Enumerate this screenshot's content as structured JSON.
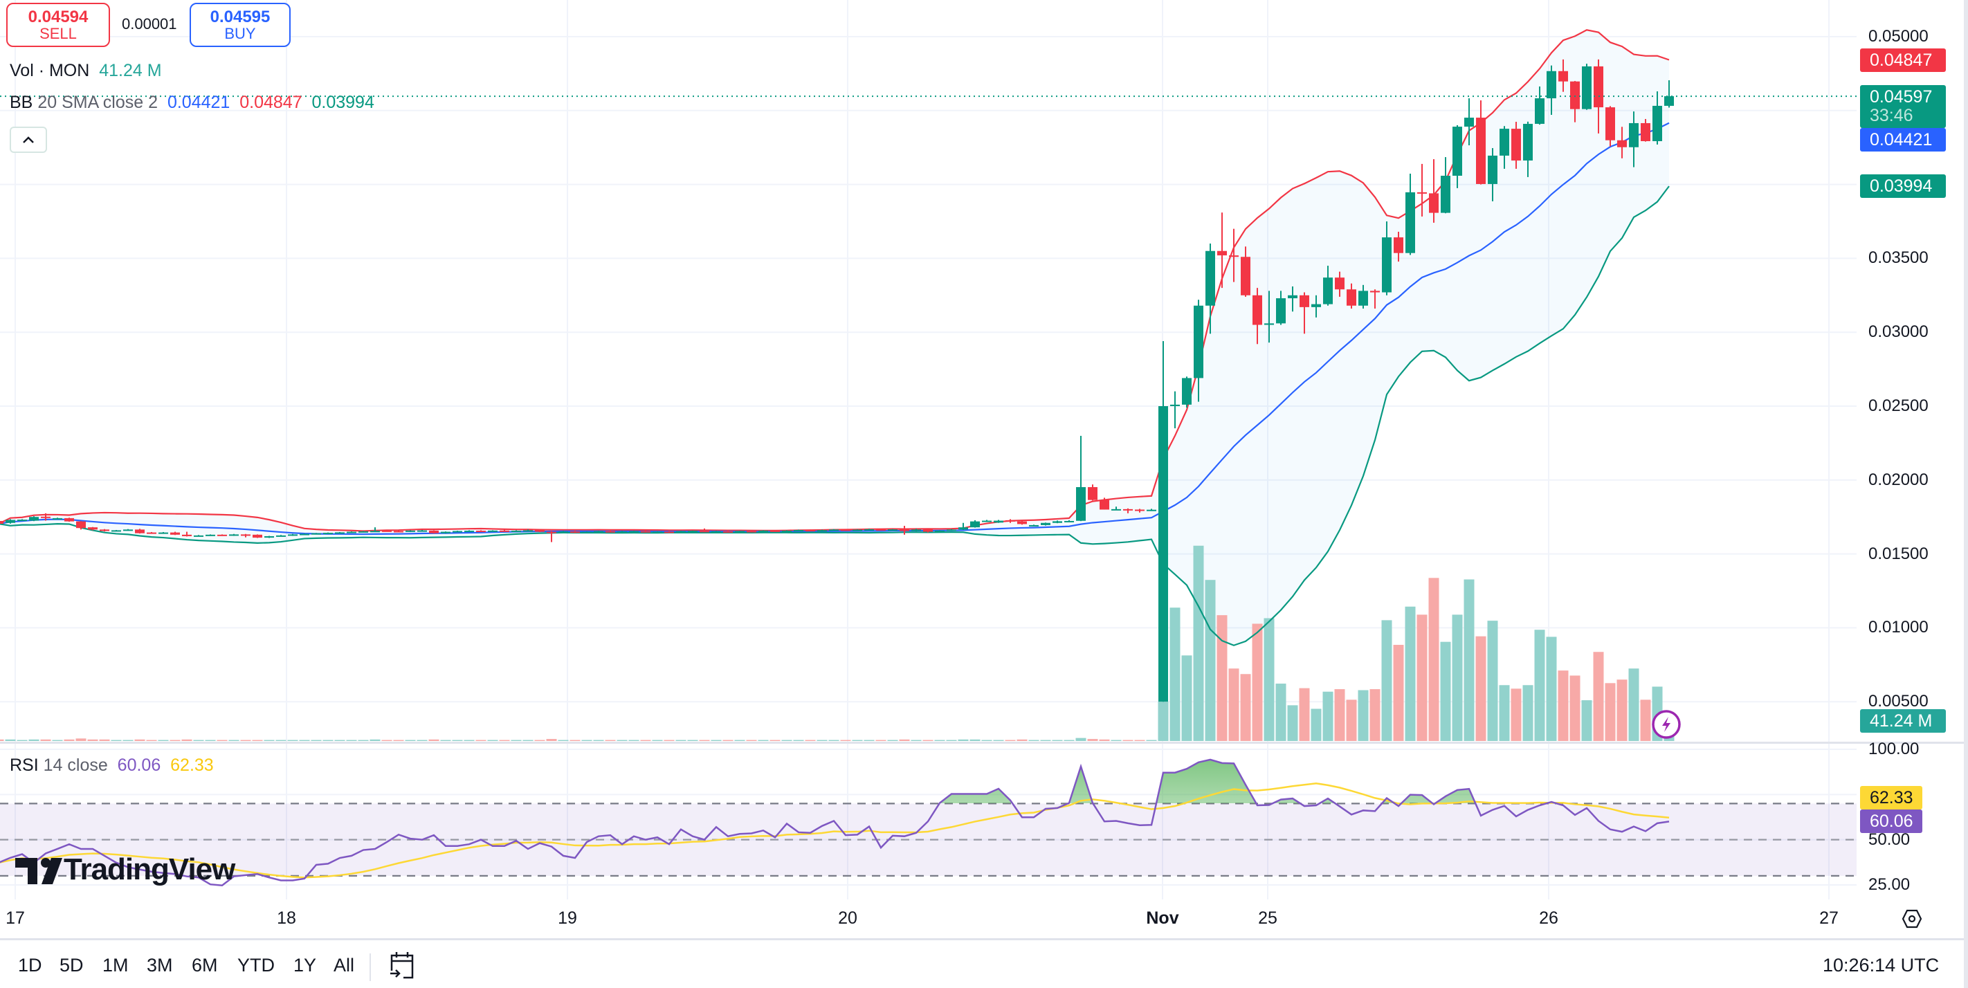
{
  "quote": {
    "sell_price": "0.04594",
    "sell_label": "SELL",
    "spread": "0.00001",
    "buy_price": "0.04595",
    "buy_label": "BUY"
  },
  "legend": {
    "vol_name": "Vol · MON",
    "vol_value": "41.24 M",
    "bb_name": "BB",
    "bb_params": "20 SMA close 2",
    "bb_basis": "0.04421",
    "bb_upper": "0.04847",
    "bb_lower": "0.03994",
    "rsi_name": "RSI",
    "rsi_params": "14 close",
    "rsi_value": "60.06",
    "rsi_ma": "62.33"
  },
  "badges": {
    "upper": "0.04847",
    "last_price": "0.04597",
    "countdown": "33:46",
    "basis": "0.04421",
    "lower": "0.03994",
    "volume": "41.24 M",
    "rsi_ma": "62.33",
    "rsi": "60.06"
  },
  "price_scale": [
    "0.05000",
    "0.03500",
    "0.03000",
    "0.02500",
    "0.02000",
    "0.01500",
    "0.01000",
    "0.00500"
  ],
  "rsi_scale": [
    "100.00",
    "50.00",
    "25.00"
  ],
  "time_axis": [
    "17",
    "18",
    "19",
    "20",
    "Nov",
    "25",
    "26",
    "27"
  ],
  "toolbar": {
    "ranges": [
      "1D",
      "5D",
      "1M",
      "3M",
      "6M",
      "YTD",
      "1Y",
      "All"
    ],
    "clock": "10:26:14 UTC"
  },
  "watermark": "TradingView",
  "colors": {
    "up": "#089981",
    "down": "#f23645",
    "bb_basis": "#2962ff",
    "bb_upper": "#f23645",
    "bb_lower": "#089981",
    "rsi": "#7e57c2",
    "rsi_ma": "#fdd835",
    "vol_up": "#92d2cc",
    "vol_down": "#f7a9a7"
  },
  "icons": {
    "collapse": "chevron-up-icon",
    "date_range": "calendar-goto-icon",
    "settings": "hexagon-settings-icon",
    "alert": "lightning-icon"
  },
  "chart_data": {
    "type": "candlestick",
    "candle_fields": [
      "open",
      "high",
      "low",
      "close",
      "volume_M"
    ],
    "y_ticks": [
      0.005,
      0.01,
      0.015,
      0.02,
      0.025,
      0.03,
      0.035,
      0.04,
      0.045,
      0.05
    ],
    "last_price": 0.04597,
    "bollinger": {
      "length": 20,
      "mult": 2
    },
    "rsi_levels": [
      70,
      50,
      30
    ],
    "rsi_ma_length": 14,
    "candles": [
      [
        0.01723,
        0.01728,
        0.017,
        0.01704,
        3
      ],
      [
        0.0171,
        0.01735,
        0.01705,
        0.0173,
        3
      ],
      [
        0.0173,
        0.01735,
        0.01725,
        0.01732,
        2
      ],
      [
        0.01725,
        0.01755,
        0.01722,
        0.0175,
        3
      ],
      [
        0.01752,
        0.01775,
        0.01725,
        0.01748,
        3
      ],
      [
        0.01738,
        0.01745,
        0.01735,
        0.01742,
        2
      ],
      [
        0.01742,
        0.01745,
        0.01718,
        0.0172,
        3
      ],
      [
        0.0172,
        0.01722,
        0.01665,
        0.01675,
        5
      ],
      [
        0.0168,
        0.01682,
        0.0166,
        0.01665,
        3
      ],
      [
        0.01665,
        0.01668,
        0.01652,
        0.01655,
        3
      ],
      [
        0.01655,
        0.01662,
        0.01652,
        0.0166,
        2
      ],
      [
        0.0166,
        0.01668,
        0.01658,
        0.01665,
        2
      ],
      [
        0.01665,
        0.0167,
        0.01638,
        0.0164,
        3
      ],
      [
        0.01645,
        0.01648,
        0.01638,
        0.0164,
        2
      ],
      [
        0.0164,
        0.01648,
        0.01636,
        0.01645,
        2
      ],
      [
        0.01645,
        0.0165,
        0.01628,
        0.0163,
        2
      ],
      [
        0.0163,
        0.0165,
        0.01618,
        0.0162,
        3
      ],
      [
        0.0162,
        0.01628,
        0.01618,
        0.01625,
        2
      ],
      [
        0.01625,
        0.01632,
        0.01622,
        0.0163,
        2
      ],
      [
        0.0163,
        0.01632,
        0.01622,
        0.01625,
        2
      ],
      [
        0.01625,
        0.01635,
        0.01622,
        0.01632,
        2
      ],
      [
        0.01632,
        0.01635,
        0.01612,
        0.0163,
        2
      ],
      [
        0.0163,
        0.01632,
        0.01608,
        0.0161,
        2
      ],
      [
        0.0161,
        0.01622,
        0.01608,
        0.0162,
        2
      ],
      [
        0.0162,
        0.01628,
        0.01618,
        0.01625,
        2
      ],
      [
        0.01625,
        0.01635,
        0.01622,
        0.01632,
        2
      ],
      [
        0.01632,
        0.01638,
        0.0163,
        0.01636,
        2
      ],
      [
        0.01636,
        0.01642,
        0.01634,
        0.0164,
        2
      ],
      [
        0.0164,
        0.01645,
        0.01636,
        0.01643,
        2
      ],
      [
        0.01643,
        0.01648,
        0.01638,
        0.01646,
        2
      ],
      [
        0.01646,
        0.01652,
        0.01644,
        0.0165,
        2
      ],
      [
        0.0165,
        0.01655,
        0.01645,
        0.01653,
        2
      ],
      [
        0.01653,
        0.0168,
        0.0165,
        0.01656,
        3
      ],
      [
        0.01658,
        0.0166,
        0.01652,
        0.01655,
        2
      ],
      [
        0.01655,
        0.01658,
        0.01648,
        0.0165,
        2
      ],
      [
        0.0165,
        0.0166,
        0.01648,
        0.01658,
        2
      ],
      [
        0.01658,
        0.01662,
        0.01655,
        0.01659,
        2
      ],
      [
        0.01658,
        0.0166,
        0.01638,
        0.0164,
        3
      ],
      [
        0.0164,
        0.01652,
        0.01638,
        0.0165,
        2
      ],
      [
        0.0165,
        0.01657,
        0.01648,
        0.01655,
        2
      ],
      [
        0.01655,
        0.0166,
        0.01652,
        0.01657,
        2
      ],
      [
        0.01657,
        0.0166,
        0.0165,
        0.01655,
        2
      ],
      [
        0.01655,
        0.0166,
        0.0165,
        0.01658,
        2
      ],
      [
        0.01658,
        0.01662,
        0.01652,
        0.01654,
        2
      ],
      [
        0.01654,
        0.0166,
        0.0165,
        0.01657,
        2
      ],
      [
        0.01657,
        0.01665,
        0.01652,
        0.0166,
        2
      ],
      [
        0.0166,
        0.01662,
        0.01648,
        0.0165,
        2
      ],
      [
        0.0165,
        0.01655,
        0.0158,
        0.01648,
        4
      ],
      [
        0.01648,
        0.01655,
        0.01645,
        0.01652,
        2
      ],
      [
        0.01652,
        0.01656,
        0.01642,
        0.01645,
        2
      ],
      [
        0.01645,
        0.01652,
        0.01643,
        0.0165,
        2
      ],
      [
        0.0165,
        0.01656,
        0.01648,
        0.01654,
        2
      ],
      [
        0.01654,
        0.01658,
        0.01646,
        0.01648,
        2
      ],
      [
        0.01648,
        0.01655,
        0.01646,
        0.01652,
        2
      ],
      [
        0.01652,
        0.01656,
        0.01648,
        0.01654,
        2
      ],
      [
        0.01654,
        0.01657,
        0.01645,
        0.01647,
        2
      ],
      [
        0.01647,
        0.01653,
        0.01645,
        0.01651,
        2
      ],
      [
        0.01651,
        0.01655,
        0.01643,
        0.01645,
        2
      ],
      [
        0.01645,
        0.01656,
        0.01643,
        0.01654,
        2
      ],
      [
        0.01654,
        0.01658,
        0.0165,
        0.01656,
        2
      ],
      [
        0.01656,
        0.01672,
        0.01648,
        0.0165,
        2
      ],
      [
        0.0165,
        0.01656,
        0.01646,
        0.01653,
        2
      ],
      [
        0.01653,
        0.01656,
        0.01645,
        0.01648,
        2
      ],
      [
        0.01648,
        0.01657,
        0.01646,
        0.01655,
        2
      ],
      [
        0.01655,
        0.01658,
        0.01648,
        0.0165,
        2
      ],
      [
        0.0165,
        0.0166,
        0.01648,
        0.01658,
        2
      ],
      [
        0.01658,
        0.01662,
        0.0165,
        0.01652,
        2
      ],
      [
        0.01652,
        0.0166,
        0.0165,
        0.01657,
        2
      ],
      [
        0.01657,
        0.01664,
        0.01655,
        0.01662,
        2
      ],
      [
        0.01662,
        0.01665,
        0.01654,
        0.01656,
        2
      ],
      [
        0.01656,
        0.01664,
        0.01654,
        0.01661,
        2
      ],
      [
        0.01661,
        0.01668,
        0.01658,
        0.01665,
        2
      ],
      [
        0.01665,
        0.01668,
        0.01656,
        0.01658,
        2
      ],
      [
        0.01658,
        0.01666,
        0.01656,
        0.01664,
        2
      ],
      [
        0.01664,
        0.0167,
        0.0166,
        0.01667,
        2
      ],
      [
        0.01667,
        0.01669,
        0.0166,
        0.01662,
        2
      ],
      [
        0.01662,
        0.01668,
        0.0166,
        0.01666,
        2
      ],
      [
        0.01668,
        0.0169,
        0.0163,
        0.01655,
        3
      ],
      [
        0.01655,
        0.0167,
        0.01652,
        0.01665,
        2
      ],
      [
        0.01665,
        0.01668,
        0.01645,
        0.0165,
        2
      ],
      [
        0.0165,
        0.0166,
        0.01648,
        0.01658,
        2
      ],
      [
        0.01658,
        0.01668,
        0.01655,
        0.01665,
        2
      ],
      [
        0.01665,
        0.0171,
        0.01662,
        0.0168,
        3
      ],
      [
        0.0168,
        0.01728,
        0.01678,
        0.0172,
        3
      ],
      [
        0.0172,
        0.0173,
        0.01718,
        0.01725,
        2
      ],
      [
        0.01712,
        0.0173,
        0.0171,
        0.01725,
        2
      ],
      [
        0.01728,
        0.01735,
        0.0171,
        0.0172,
        2
      ],
      [
        0.0172,
        0.01725,
        0.01698,
        0.01702,
        3
      ],
      [
        0.0169,
        0.01698,
        0.01688,
        0.01695,
        2
      ],
      [
        0.01695,
        0.01712,
        0.01692,
        0.0171,
        2
      ],
      [
        0.0171,
        0.01726,
        0.01708,
        0.01721,
        2
      ],
      [
        0.0172,
        0.01728,
        0.01718,
        0.01723,
        2
      ],
      [
        0.01724,
        0.02299,
        0.01722,
        0.01952,
        6
      ],
      [
        0.01952,
        0.0197,
        0.01862,
        0.01865,
        4
      ],
      [
        0.01865,
        0.0188,
        0.018,
        0.018,
        3
      ],
      [
        0.018,
        0.0182,
        0.018,
        0.01803,
        2
      ],
      [
        0.01803,
        0.01808,
        0.01775,
        0.018,
        2
      ],
      [
        0.018,
        0.01805,
        0.0178,
        0.01796,
        2
      ],
      [
        0.01796,
        0.01805,
        0.01792,
        0.01799,
        2
      ],
      [
        0.005,
        0.0294,
        0.005,
        0.025,
        78
      ],
      [
        0.025,
        0.026,
        0.0235,
        0.0251,
        265
      ],
      [
        0.0251,
        0.027,
        0.0249,
        0.0269,
        170
      ],
      [
        0.0269,
        0.0322,
        0.0253,
        0.0318,
        388
      ],
      [
        0.0318,
        0.036,
        0.0299,
        0.0355,
        320
      ],
      [
        0.0355,
        0.0381,
        0.033,
        0.0352,
        250
      ],
      [
        0.0352,
        0.037,
        0.0334,
        0.0351,
        144
      ],
      [
        0.0351,
        0.0358,
        0.0324,
        0.0325,
        133
      ],
      [
        0.0325,
        0.033,
        0.0292,
        0.0305,
        233
      ],
      [
        0.0305,
        0.0328,
        0.0293,
        0.0306,
        244
      ],
      [
        0.0306,
        0.0328,
        0.0305,
        0.0323,
        114
      ],
      [
        0.0323,
        0.0331,
        0.0314,
        0.0325,
        71
      ],
      [
        0.0325,
        0.0327,
        0.0299,
        0.0317,
        105
      ],
      [
        0.0317,
        0.0325,
        0.031,
        0.0319,
        64
      ],
      [
        0.0319,
        0.0345,
        0.0318,
        0.0337,
        98
      ],
      [
        0.0337,
        0.0341,
        0.0324,
        0.0329,
        103
      ],
      [
        0.0329,
        0.0333,
        0.0316,
        0.0318,
        82
      ],
      [
        0.0318,
        0.0332,
        0.0316,
        0.0328,
        101
      ],
      [
        0.0328,
        0.0329,
        0.0316,
        0.0327,
        103
      ],
      [
        0.0327,
        0.0375,
        0.0325,
        0.03642,
        240
      ],
      [
        0.03642,
        0.0368,
        0.03478,
        0.03536,
        191
      ],
      [
        0.03536,
        0.04073,
        0.03523,
        0.03947,
        267
      ],
      [
        0.03947,
        0.04139,
        0.03783,
        0.0394,
        251
      ],
      [
        0.0394,
        0.04171,
        0.03741,
        0.03808,
        324
      ],
      [
        0.03808,
        0.04185,
        0.03805,
        0.04059,
        197
      ],
      [
        0.04059,
        0.04401,
        0.03975,
        0.04391,
        251
      ],
      [
        0.04391,
        0.04583,
        0.04265,
        0.04452,
        321
      ],
      [
        0.04452,
        0.04569,
        0.04,
        0.04003,
        208
      ],
      [
        0.04003,
        0.04246,
        0.03886,
        0.04195,
        239
      ],
      [
        0.04195,
        0.04395,
        0.04106,
        0.04377,
        111
      ],
      [
        0.04377,
        0.04424,
        0.04106,
        0.04162,
        104
      ],
      [
        0.04162,
        0.04425,
        0.0405,
        0.0441,
        111
      ],
      [
        0.0441,
        0.04663,
        0.04405,
        0.04583,
        221
      ],
      [
        0.04583,
        0.04805,
        0.04471,
        0.04767,
        207
      ],
      [
        0.04767,
        0.04846,
        0.04627,
        0.04697,
        140
      ],
      [
        0.04697,
        0.047,
        0.04421,
        0.0451,
        130
      ],
      [
        0.0451,
        0.04817,
        0.04505,
        0.04799,
        81
      ],
      [
        0.04799,
        0.04846,
        0.04345,
        0.04522,
        177
      ],
      [
        0.04522,
        0.0453,
        0.04257,
        0.04299,
        115
      ],
      [
        0.04299,
        0.0439,
        0.04177,
        0.04252,
        122
      ],
      [
        0.04252,
        0.04494,
        0.04117,
        0.04415,
        144
      ],
      [
        0.04415,
        0.04443,
        0.0429,
        0.04293,
        82
      ],
      [
        0.04293,
        0.0463,
        0.0427,
        0.04532,
        108
      ],
      [
        0.04532,
        0.04705,
        0.0452,
        0.04597,
        41.24
      ]
    ],
    "rsi": [
      37.3,
      40,
      42,
      37.3,
      42.4,
      44.9,
      47.5,
      44.9,
      44.9,
      41.1,
      37.3,
      34.8,
      33.5,
      32.3,
      31.6,
      31,
      29.7,
      29.1,
      25.3,
      24.7,
      29.7,
      30.4,
      31,
      29.1,
      27.5,
      27.5,
      28.5,
      36.1,
      36.7,
      39.9,
      41.1,
      44.3,
      44.9,
      48.7,
      52.8,
      50.6,
      50,
      52.5,
      46.5,
      46.5,
      47.5,
      50,
      46.5,
      46.5,
      49.4,
      44.9,
      48.1,
      46.2,
      41.1,
      39.9,
      48.7,
      51.9,
      52.5,
      47.5,
      51.9,
      50,
      51.3,
      47.5,
      55.7,
      51.9,
      50,
      57,
      51.9,
      53.2,
      53.5,
      55.1,
      51.3,
      58.9,
      54.1,
      53.8,
      57.6,
      60.4,
      52.5,
      52.8,
      57.3,
      45.6,
      52.2,
      51.9,
      53.8,
      60.1,
      70.3,
      75.3,
      75.3,
      75.3,
      75.3,
      78.2,
      71.8,
      62.4,
      62.4,
      67.1,
      67.5,
      70.3,
      90.5,
      70.3,
      60.1,
      60.4,
      59.1,
      58,
      58.2,
      87.1,
      87.1,
      89.2,
      92.8,
      94.3,
      92.4,
      92.2,
      80.4,
      69,
      69.2,
      72.2,
      72.8,
      68.6,
      69,
      72.8,
      68.4,
      63.9,
      66.2,
      65.8,
      73,
      68.6,
      74.9,
      74.7,
      69.6,
      74,
      77.5,
      78.1,
      63.3,
      66.5,
      68.7,
      62.9,
      66.5,
      69,
      70.9,
      69,
      63.7,
      67.5,
      60.4,
      55.7,
      54.4,
      57.3,
      54.7,
      59.1,
      60.06
    ]
  }
}
